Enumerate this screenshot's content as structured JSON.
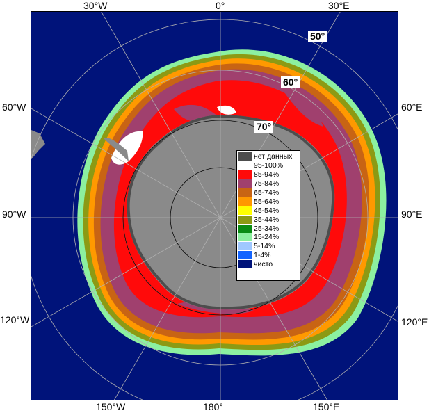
{
  "map": {
    "projection_center": "South Pole",
    "ocean_color": "#00137a",
    "land_color": "#8a8a8a",
    "graticule_color": "#b0b0b0"
  },
  "longitude_labels": {
    "top_30w": "30°W",
    "top_0": "0°",
    "top_30e": "30°E",
    "left_60w": "60°W",
    "right_60e": "60°E",
    "left_90w": "90°W",
    "right_90e": "90°E",
    "left_120w": "120°W",
    "right_120e": "120°E",
    "bottom_150w": "150°W",
    "bottom_180": "180°",
    "bottom_150e": "150°E"
  },
  "latitude_labels": {
    "lat_50": "50°",
    "lat_60": "60°",
    "lat_70": "70°"
  },
  "legend": {
    "items": [
      {
        "label": "нет данных",
        "color": "#4d4d4d"
      },
      {
        "label": "95-100%",
        "color": "#ffffff"
      },
      {
        "label": "85-94%",
        "color": "#ff0a0a"
      },
      {
        "label": "75-84%",
        "color": "#a0406e"
      },
      {
        "label": "65-74%",
        "color": "#c86414"
      },
      {
        "label": "55-64%",
        "color": "#ff9900"
      },
      {
        "label": "45-54%",
        "color": "#ffff00"
      },
      {
        "label": "35-44%",
        "color": "#8c9a14"
      },
      {
        "label": "25-34%",
        "color": "#0a8c14"
      },
      {
        "label": "15-24%",
        "color": "#8cf0a0"
      },
      {
        "label": "5-14%",
        "color": "#a0c8ff"
      },
      {
        "label": "1-4%",
        "color": "#1464ff"
      },
      {
        "label": "чисто",
        "color": "#00137a"
      }
    ]
  }
}
